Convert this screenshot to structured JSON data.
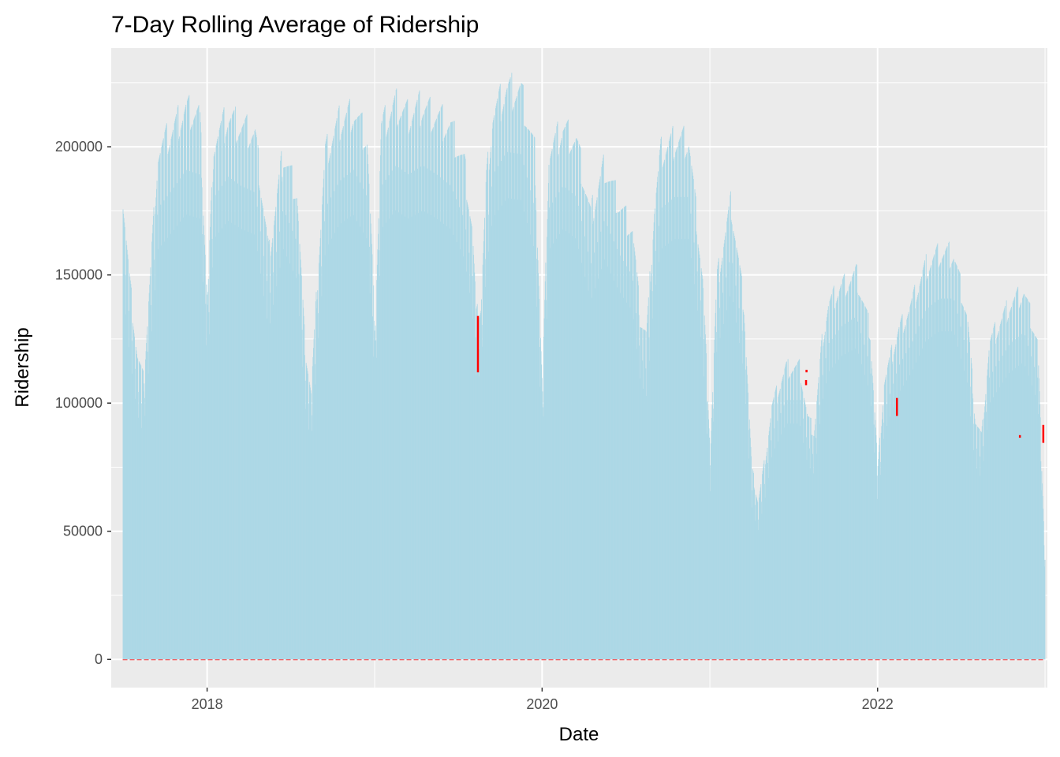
{
  "chart_data": {
    "type": "bar",
    "title": "7-Day Rolling Average of Ridership",
    "xlabel": "Date",
    "ylabel": "Ridership",
    "x_range": [
      "2017-06-06",
      "2023-01-06"
    ],
    "ylim": [
      -11000,
      238500
    ],
    "x_ticks": [
      {
        "date": "2018-01-01",
        "label": "2018"
      },
      {
        "date": "2020-01-01",
        "label": "2020"
      },
      {
        "date": "2022-01-01",
        "label": "2022"
      }
    ],
    "y_ticks": [
      0,
      50000,
      100000,
      150000,
      200000
    ],
    "grid": true,
    "legend": "none",
    "colors": {
      "bars": "#add8e6",
      "rolling_average": "#ff0000",
      "panel_background": "#ebebeb",
      "grid": "#ffffff",
      "tick_text": "#4d4d4d"
    },
    "series": [
      {
        "kind": "daily bars",
        "date_start": "2017-07-01",
        "date_end": "2022-12-31",
        "envelope": [
          [
            "2017-07-01",
            182000
          ],
          [
            "2017-07-15",
            150000
          ],
          [
            "2017-08-01",
            120000
          ],
          [
            "2017-08-15",
            110000
          ],
          [
            "2017-09-01",
            160000
          ],
          [
            "2017-09-15",
            200000
          ],
          [
            "2017-10-15",
            208000
          ],
          [
            "2017-11-15",
            217000
          ],
          [
            "2017-12-15",
            215000
          ],
          [
            "2018-01-01",
            140000
          ],
          [
            "2018-01-15",
            205000
          ],
          [
            "2018-02-15",
            214000
          ],
          [
            "2018-03-15",
            210000
          ],
          [
            "2018-04-15",
            207000
          ],
          [
            "2018-05-15",
            160000
          ],
          [
            "2018-06-15",
            200000
          ],
          [
            "2018-07-15",
            185000
          ],
          [
            "2018-08-01",
            125000
          ],
          [
            "2018-08-15",
            105000
          ],
          [
            "2018-09-01",
            160000
          ],
          [
            "2018-09-15",
            200000
          ],
          [
            "2018-10-15",
            212000
          ],
          [
            "2018-11-15",
            217000
          ],
          [
            "2018-12-15",
            205000
          ],
          [
            "2019-01-01",
            130000
          ],
          [
            "2019-01-15",
            210000
          ],
          [
            "2019-02-15",
            219000
          ],
          [
            "2019-03-15",
            215000
          ],
          [
            "2019-04-15",
            219000
          ],
          [
            "2019-05-15",
            215000
          ],
          [
            "2019-06-15",
            210000
          ],
          [
            "2019-07-15",
            195000
          ],
          [
            "2019-08-01",
            170000
          ],
          [
            "2019-08-10",
            135000
          ],
          [
            "2019-08-20",
            140000
          ],
          [
            "2019-09-01",
            190000
          ],
          [
            "2019-09-15",
            215000
          ],
          [
            "2019-10-15",
            225000
          ],
          [
            "2019-11-15",
            224000
          ],
          [
            "2019-12-15",
            200000
          ],
          [
            "2020-01-01",
            105000
          ],
          [
            "2020-01-15",
            200000
          ],
          [
            "2020-02-15",
            210000
          ],
          [
            "2020-03-15",
            205000
          ],
          [
            "2020-04-15",
            175000
          ],
          [
            "2020-05-15",
            195000
          ],
          [
            "2020-06-15",
            180000
          ],
          [
            "2020-07-15",
            170000
          ],
          [
            "2020-08-01",
            135000
          ],
          [
            "2020-08-15",
            128000
          ],
          [
            "2020-09-01",
            178000
          ],
          [
            "2020-09-15",
            200000
          ],
          [
            "2020-10-15",
            205000
          ],
          [
            "2020-11-15",
            205000
          ],
          [
            "2020-12-15",
            150000
          ],
          [
            "2021-01-01",
            82000
          ],
          [
            "2021-01-15",
            150000
          ],
          [
            "2021-02-15",
            180000
          ],
          [
            "2021-03-15",
            140000
          ],
          [
            "2021-04-01",
            75000
          ],
          [
            "2021-04-15",
            62000
          ],
          [
            "2021-05-01",
            80000
          ],
          [
            "2021-05-15",
            100000
          ],
          [
            "2021-06-15",
            115000
          ],
          [
            "2021-07-15",
            115000
          ],
          [
            "2021-08-01",
            95000
          ],
          [
            "2021-08-15",
            90000
          ],
          [
            "2021-09-01",
            125000
          ],
          [
            "2021-09-15",
            140000
          ],
          [
            "2021-10-15",
            148000
          ],
          [
            "2021-11-15",
            152000
          ],
          [
            "2021-12-15",
            130000
          ],
          [
            "2022-01-01",
            75000
          ],
          [
            "2022-01-15",
            110000
          ],
          [
            "2022-02-15",
            130000
          ],
          [
            "2022-03-15",
            140000
          ],
          [
            "2022-04-15",
            155000
          ],
          [
            "2022-05-15",
            160000
          ],
          [
            "2022-06-15",
            160000
          ],
          [
            "2022-07-15",
            135000
          ],
          [
            "2022-08-01",
            95000
          ],
          [
            "2022-08-15",
            88000
          ],
          [
            "2022-09-01",
            125000
          ],
          [
            "2022-09-15",
            130000
          ],
          [
            "2022-10-15",
            140000
          ],
          [
            "2022-11-15",
            145000
          ],
          [
            "2022-12-15",
            125000
          ],
          [
            "2022-12-31",
            40000
          ]
        ]
      },
      {
        "kind": "rolling-average marks",
        "points": [
          {
            "date": "2019-08-12",
            "y_from": 112000,
            "y_to": 134000
          },
          {
            "date": "2021-07-27",
            "y_from": 107000,
            "y_to": 109000
          },
          {
            "date": "2021-07-28",
            "y_from": 112000,
            "y_to": 113000
          },
          {
            "date": "2022-02-10",
            "y_from": 95000,
            "y_to": 102000
          },
          {
            "date": "2022-11-05",
            "y_from": 86500,
            "y_to": 87500
          },
          {
            "date": "2022-12-26",
            "y_from": 84500,
            "y_to": 91500
          }
        ]
      }
    ]
  }
}
